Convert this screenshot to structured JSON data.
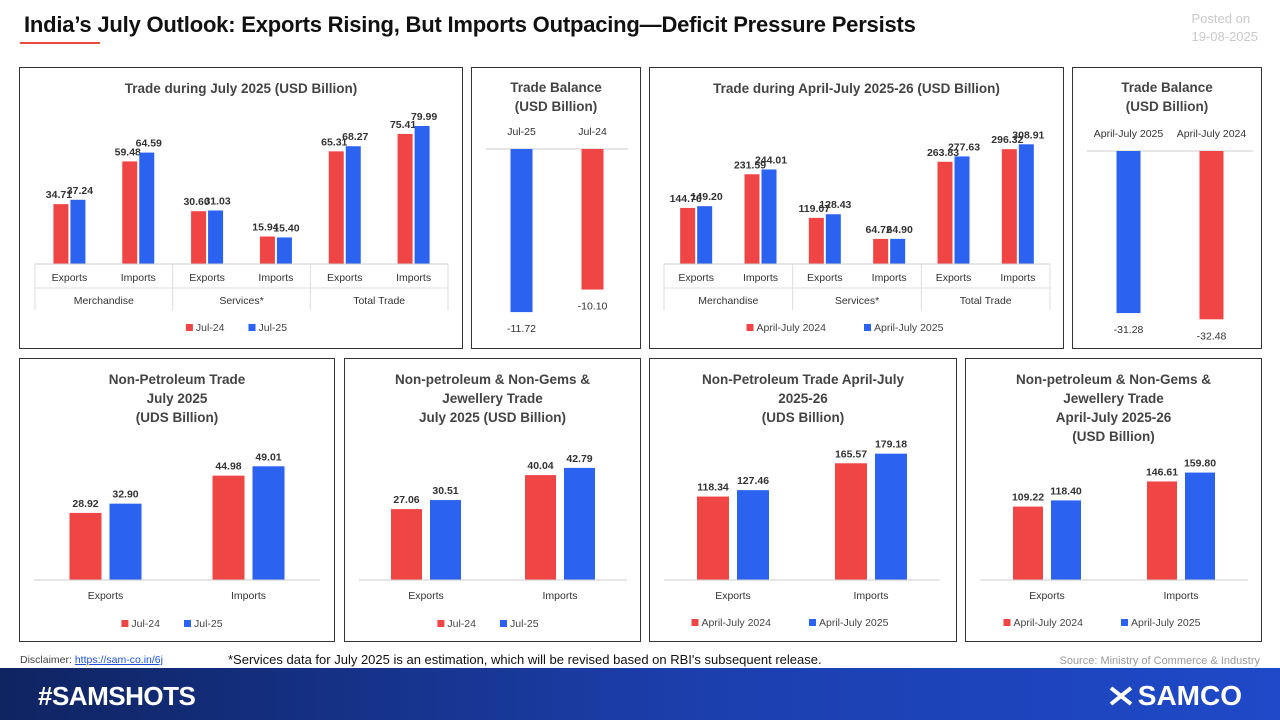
{
  "header": {
    "title": "India’s July Outlook: Exports Rising, But Imports Outpacing—Deficit Pressure Persists",
    "posted_label": "Posted on",
    "posted_date": "19-08-2025"
  },
  "colors": {
    "red": "#f04545",
    "blue": "#2b62f0"
  },
  "chart_data": [
    {
      "id": "c1",
      "type": "bar",
      "title": "Trade during July 2025 (USD Billion)",
      "categories": [
        "Exports",
        "Imports",
        "Exports",
        "Imports",
        "Exports",
        "Imports"
      ],
      "groups": [
        "Merchandise",
        "Services*",
        "Total Trade"
      ],
      "series": [
        {
          "name": "Jul-24",
          "values": [
            34.71,
            59.48,
            30.6,
            15.94,
            65.31,
            75.41
          ]
        },
        {
          "name": "Jul-25",
          "values": [
            37.24,
            64.59,
            31.03,
            15.4,
            68.27,
            79.99
          ]
        }
      ],
      "ylim": [
        0,
        80
      ]
    },
    {
      "id": "c2",
      "type": "bar",
      "title": "Trade Balance\n(USD Billion)",
      "categories": [
        "Jul-25",
        "Jul-24"
      ],
      "values": [
        -11.72,
        -10.1
      ],
      "ylim": [
        -12,
        0
      ]
    },
    {
      "id": "c3",
      "type": "bar",
      "title": "Trade during April-July 2025-26 (USD Billion)",
      "categories": [
        "Exports",
        "Imports",
        "Exports",
        "Imports",
        "Exports",
        "Imports"
      ],
      "groups": [
        "Merchandise",
        "Services*",
        "Total Trade"
      ],
      "series": [
        {
          "name": "April-July 2024",
          "values": [
            144.76,
            231.59,
            119.07,
            64.72,
            263.83,
            296.32
          ]
        },
        {
          "name": "April-July 2025",
          "values": [
            149.2,
            244.01,
            128.43,
            64.9,
            277.63,
            308.91
          ]
        }
      ],
      "ylim": [
        0,
        320
      ]
    },
    {
      "id": "c4",
      "type": "bar",
      "title": "Trade Balance\n(USD Billion)",
      "categories": [
        "April-July 2025",
        "April-July 2024"
      ],
      "values": [
        -31.28,
        -32.48
      ],
      "ylim": [
        -33,
        0
      ]
    },
    {
      "id": "c5",
      "type": "bar",
      "title": "Non-Petroleum Trade\nJuly 2025\n(UDS Billion)",
      "categories": [
        "Exports",
        "Imports"
      ],
      "series": [
        {
          "name": "Jul-24",
          "values": [
            28.92,
            44.98
          ]
        },
        {
          "name": "Jul-25",
          "values": [
            32.9,
            49.01
          ]
        }
      ],
      "ylim": [
        0,
        50
      ]
    },
    {
      "id": "c6",
      "type": "bar",
      "title": "Non-petroleum & Non-Gems &\nJewellery Trade\nJuly 2025 (USD Billion)",
      "categories": [
        "Exports",
        "Imports"
      ],
      "series": [
        {
          "name": "Jul-24",
          "values": [
            27.06,
            40.04
          ]
        },
        {
          "name": "Jul-25",
          "values": [
            30.51,
            42.79
          ]
        }
      ],
      "ylim": [
        0,
        50
      ]
    },
    {
      "id": "c7",
      "type": "bar",
      "title": "Non-Petroleum Trade April-July\n2025-26\n(UDS Billion)",
      "categories": [
        "Exports",
        "Imports"
      ],
      "series": [
        {
          "name": "April-July 2024",
          "values": [
            118.34,
            165.57
          ]
        },
        {
          "name": "April-July 2025",
          "values": [
            127.46,
            179.18
          ]
        }
      ],
      "ylim": [
        0,
        200
      ]
    },
    {
      "id": "c8",
      "type": "bar",
      "title": "Non-petroleum & Non-Gems &\nJewellery Trade\nApril-July 2025-26\n(USD Billion)",
      "categories": [
        "Exports",
        "Imports"
      ],
      "series": [
        {
          "name": "April-July 2024",
          "values": [
            109.22,
            146.61
          ]
        },
        {
          "name": "April-July 2025",
          "values": [
            118.4,
            159.8
          ]
        }
      ],
      "ylim": [
        0,
        180
      ]
    }
  ],
  "footer": {
    "disclaimer_label": "Disclaimer:",
    "disclaimer_link": "https://sam-co.in/6j",
    "note": "*Services data for July 2025 is an estimation, which will be revised based on RBI's subsequent release.",
    "source": "Source: Ministry of Commerce & Industry",
    "hashtag": "#SAMSHOTS",
    "brand": "SAMCO"
  }
}
